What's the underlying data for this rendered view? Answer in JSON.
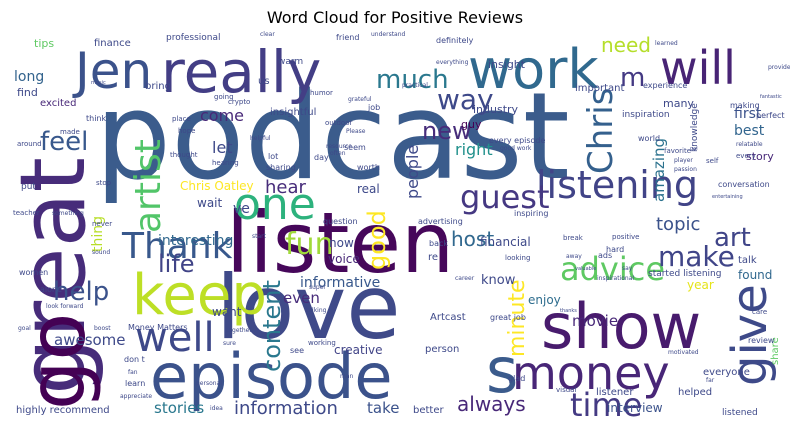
{
  "chart_data": {
    "type": "word_cloud",
    "title": "Word Cloud for Positive Reviews",
    "colormap": "viridis",
    "background": "#ffffff",
    "words": [
      {
        "text": "podcast",
        "weight": 100,
        "color": "#3b5c8c"
      },
      {
        "text": "great",
        "weight": 70,
        "color": "#472c7a",
        "rotate": true
      },
      {
        "text": "listen",
        "weight": 60,
        "color": "#46075a"
      },
      {
        "text": "love",
        "weight": 58,
        "color": "#3f4a89"
      },
      {
        "text": "episode",
        "weight": 48,
        "color": "#3b528b"
      },
      {
        "text": "go",
        "weight": 48,
        "color": "#440154",
        "rotate": true
      },
      {
        "text": "show",
        "weight": 40,
        "color": "#481b6d"
      },
      {
        "text": "s",
        "weight": 40,
        "color": "#3b5b8c"
      },
      {
        "text": "work",
        "weight": 34,
        "color": "#30698e"
      },
      {
        "text": "really",
        "weight": 34,
        "color": "#433e85"
      },
      {
        "text": "Jen",
        "weight": 32,
        "color": "#3b528b"
      },
      {
        "text": "money",
        "weight": 30,
        "color": "#482677"
      },
      {
        "text": "keep",
        "weight": 30,
        "color": "#bddf26"
      },
      {
        "text": "one",
        "weight": 30,
        "color": "#2db27d"
      },
      {
        "text": "give",
        "weight": 28,
        "color": "#3e4a89",
        "rotate": true
      },
      {
        "text": "will",
        "weight": 26,
        "color": "#482475"
      },
      {
        "text": "listening",
        "weight": 26,
        "color": "#414487"
      },
      {
        "text": "Thank",
        "weight": 24,
        "color": "#38588c"
      },
      {
        "text": "artist",
        "weight": 24,
        "color": "#52c569",
        "rotate": true
      },
      {
        "text": "well",
        "weight": 24,
        "color": "#3e4989"
      },
      {
        "text": "guest",
        "weight": 22,
        "color": "#453882"
      },
      {
        "text": "advice",
        "weight": 22,
        "color": "#5ec962"
      },
      {
        "text": "time",
        "weight": 22,
        "color": "#443a83"
      },
      {
        "text": "much",
        "weight": 20,
        "color": "#2a788e"
      },
      {
        "text": "Chris",
        "weight": 20,
        "color": "#34608d",
        "rotate": true
      },
      {
        "text": "make",
        "weight": 20,
        "color": "#404588"
      },
      {
        "text": "fun",
        "weight": 20,
        "color": "#a0da39"
      },
      {
        "text": "feel",
        "weight": 18,
        "color": "#38588c"
      },
      {
        "text": "way",
        "weight": 18,
        "color": "#3e4989"
      },
      {
        "text": "new",
        "weight": 18,
        "color": "#472d7b"
      },
      {
        "text": "help",
        "weight": 18,
        "color": "#3b528b"
      },
      {
        "text": "art",
        "weight": 18,
        "color": "#404588"
      },
      {
        "text": "content",
        "weight": 18,
        "color": "#2a788e",
        "rotate": true
      },
      {
        "text": "good",
        "weight": 18,
        "color": "#fde725",
        "rotate": true
      },
      {
        "text": "m",
        "weight": 18,
        "color": "#443983"
      },
      {
        "text": "minute",
        "weight": 16,
        "color": "#fde725",
        "rotate": true
      },
      {
        "text": "life",
        "weight": 16,
        "color": "#414487"
      },
      {
        "text": "need",
        "weight": 14,
        "color": "#b5de2b"
      },
      {
        "text": "always",
        "weight": 14,
        "color": "#482878"
      },
      {
        "text": "information",
        "weight": 14,
        "color": "#3e4989"
      },
      {
        "text": "host",
        "weight": 14,
        "color": "#31688e"
      },
      {
        "text": "topic",
        "weight": 14,
        "color": "#3b528b"
      },
      {
        "text": "hear",
        "weight": 14,
        "color": "#472c7a"
      },
      {
        "text": "people",
        "weight": 12,
        "color": "#3e4989",
        "rotate": true
      },
      {
        "text": "right",
        "weight": 12,
        "color": "#21918c"
      },
      {
        "text": "amazing",
        "weight": 12,
        "color": "#2c728e",
        "rotate": true
      },
      {
        "text": "come",
        "weight": 12,
        "color": "#482878"
      },
      {
        "text": "stories",
        "weight": 12,
        "color": "#2a788e"
      },
      {
        "text": "awesome",
        "weight": 12,
        "color": "#3e4989"
      },
      {
        "text": "take",
        "weight": 12,
        "color": "#3b528b"
      },
      {
        "text": "movie",
        "weight": 12,
        "color": "#482878"
      },
      {
        "text": "interesting",
        "weight": 11,
        "color": "#31688e"
      },
      {
        "text": "long",
        "weight": 11,
        "color": "#33638d"
      },
      {
        "text": "thing",
        "weight": 11,
        "color": "#b8de29",
        "rotate": true
      },
      {
        "text": "even",
        "weight": 11,
        "color": "#472c7a"
      },
      {
        "text": "informative",
        "weight": 11,
        "color": "#38588c"
      },
      {
        "text": "best",
        "weight": 11,
        "color": "#32658e"
      },
      {
        "text": "first",
        "weight": 11,
        "color": "#3b528b"
      },
      {
        "text": "year",
        "weight": 10,
        "color": "#e5e419"
      },
      {
        "text": "found",
        "weight": 10,
        "color": "#31688e"
      },
      {
        "text": "enjoy",
        "weight": 10,
        "color": "#2e6d8e"
      },
      {
        "text": "know",
        "weight": 10,
        "color": "#3e4989"
      },
      {
        "text": "Chris Oatley",
        "weight": 10,
        "color": "#fde725"
      },
      {
        "text": "financial",
        "weight": 10,
        "color": "#3e4989"
      },
      {
        "text": "wait",
        "weight": 10,
        "color": "#3e4989"
      },
      {
        "text": "ve",
        "weight": 10,
        "color": "#3e4989"
      },
      {
        "text": "now",
        "weight": 9,
        "color": "#3e4989"
      },
      {
        "text": "voice",
        "weight": 9,
        "color": "#482878"
      },
      {
        "text": "want",
        "weight": 9,
        "color": "#3e4989"
      },
      {
        "text": "real",
        "weight": 9,
        "color": "#3e4989"
      },
      {
        "text": "creative",
        "weight": 9,
        "color": "#414487"
      },
      {
        "text": "interview",
        "weight": 9,
        "color": "#3b528b"
      },
      {
        "text": "story",
        "weight": 8,
        "color": "#482878"
      },
      {
        "text": "find",
        "weight": 8,
        "color": "#3e4989"
      },
      {
        "text": "tips",
        "weight": 8,
        "color": "#5ec962"
      },
      {
        "text": "finance",
        "weight": 8,
        "color": "#3e4989"
      },
      {
        "text": "bring",
        "weight": 8,
        "color": "#3e4989"
      },
      {
        "text": "industry",
        "weight": 8,
        "color": "#3e4989"
      },
      {
        "text": "guy",
        "weight": 8,
        "color": "#440154"
      },
      {
        "text": "insight",
        "weight": 8,
        "color": "#3e4989"
      },
      {
        "text": "important",
        "weight": 8,
        "color": "#3e4989"
      },
      {
        "text": "many",
        "weight": 8,
        "color": "#3e4989"
      },
      {
        "text": "let",
        "weight": 8,
        "color": "#3e4989"
      },
      {
        "text": "excited",
        "weight": 8,
        "color": "#482878"
      },
      {
        "text": "us",
        "weight": 8,
        "color": "#3e4989"
      },
      {
        "text": "re",
        "weight": 8,
        "color": "#3e4989"
      },
      {
        "text": "talk",
        "weight": 8,
        "color": "#3e4989"
      },
      {
        "text": "Artcast",
        "weight": 8,
        "color": "#3e4989"
      },
      {
        "text": "person",
        "weight": 8,
        "color": "#3e4989"
      },
      {
        "text": "listener",
        "weight": 8,
        "color": "#3e4989"
      },
      {
        "text": "helped",
        "weight": 8,
        "color": "#3e4989"
      },
      {
        "text": "listened",
        "weight": 7,
        "color": "#3e4989"
      },
      {
        "text": "highly recommend",
        "weight": 8,
        "color": "#3e4989"
      },
      {
        "text": "better",
        "weight": 7,
        "color": "#3e4989"
      },
      {
        "text": "everyone",
        "weight": 7,
        "color": "#3e4989"
      },
      {
        "text": "share",
        "weight": 8,
        "color": "#5ec962",
        "rotate": true
      },
      {
        "text": "started listening",
        "weight": 7,
        "color": "#3e4989"
      },
      {
        "text": "Money Matters",
        "weight": 6,
        "color": "#3e4989"
      },
      {
        "text": "insightful",
        "weight": 7,
        "color": "#3e4989"
      },
      {
        "text": "professional",
        "weight": 7,
        "color": "#3e4989"
      },
      {
        "text": "definitely",
        "weight": 6,
        "color": "#3e4989"
      },
      {
        "text": "friend",
        "weight": 6,
        "color": "#3e4989"
      },
      {
        "text": "warm",
        "weight": 6,
        "color": "#3e4989"
      },
      {
        "text": "inspiration",
        "weight": 6,
        "color": "#3e4989"
      },
      {
        "text": "experience",
        "weight": 6,
        "color": "#3e4989"
      },
      {
        "text": "perfect",
        "weight": 6,
        "color": "#3e4989"
      },
      {
        "text": "making",
        "weight": 6,
        "color": "#3e4989"
      },
      {
        "text": "knowledge",
        "weight": 6,
        "color": "#3e4989",
        "rotate": true
      },
      {
        "text": "review",
        "weight": 6,
        "color": "#3e4989"
      },
      {
        "text": "conversation",
        "weight": 6,
        "color": "#3e4989"
      },
      {
        "text": "alone",
        "weight": 6,
        "color": "#3e4989"
      },
      {
        "text": "women",
        "weight": 6,
        "color": "#3e4989"
      },
      {
        "text": "job",
        "weight": 6,
        "color": "#3e4989"
      },
      {
        "text": "world",
        "weight": 6,
        "color": "#3e4989"
      },
      {
        "text": "lot",
        "weight": 6,
        "color": "#3e4989"
      },
      {
        "text": "sharing",
        "weight": 6,
        "color": "#3e4989"
      },
      {
        "text": "worth",
        "weight": 6,
        "color": "#3e4989"
      },
      {
        "text": "question",
        "weight": 6,
        "color": "#3e4989"
      },
      {
        "text": "advertising",
        "weight": 6,
        "color": "#3e4989"
      },
      {
        "text": "every episode",
        "weight": 6,
        "color": "#3e4989"
      },
      {
        "text": "good work",
        "weight": 5,
        "color": "#3e4989"
      },
      {
        "text": "great job",
        "weight": 6,
        "color": "#3e4989"
      },
      {
        "text": "back",
        "weight": 6,
        "color": "#3e4989"
      },
      {
        "text": "inspiring",
        "weight": 6,
        "color": "#3e4989"
      },
      {
        "text": "hard",
        "weight": 6,
        "color": "#3e4989"
      },
      {
        "text": "positive",
        "weight": 5,
        "color": "#3e4989"
      },
      {
        "text": "ads",
        "weight": 6,
        "color": "#3e4989"
      },
      {
        "text": "glad",
        "weight": 6,
        "color": "#3e4989"
      },
      {
        "text": "visual",
        "weight": 5,
        "color": "#3e4989"
      },
      {
        "text": "thought",
        "weight": 5,
        "color": "#3e4989"
      },
      {
        "text": "hope",
        "weight": 5,
        "color": "#3e4989"
      },
      {
        "text": "place",
        "weight": 5,
        "color": "#3e4989"
      },
      {
        "text": "think",
        "weight": 6,
        "color": "#3e4989"
      },
      {
        "text": "made",
        "weight": 5,
        "color": "#3e4989"
      },
      {
        "text": "crypto",
        "weight": 5,
        "color": "#3e4989"
      },
      {
        "text": "day",
        "weight": 6,
        "color": "#3e4989"
      },
      {
        "text": "seem",
        "weight": 6,
        "color": "#3e4989"
      },
      {
        "text": "see",
        "weight": 6,
        "color": "#3e4989"
      },
      {
        "text": "working",
        "weight": 5,
        "color": "#3e4989"
      },
      {
        "text": "learn",
        "weight": 6,
        "color": "#3e4989"
      },
      {
        "text": "don t",
        "weight": 6,
        "color": "#3e4989"
      },
      {
        "text": "put",
        "weight": 6,
        "color": "#3e4989"
      },
      {
        "text": "stop",
        "weight": 5,
        "color": "#3e4989"
      },
      {
        "text": "teacher",
        "weight": 5,
        "color": "#3e4989"
      },
      {
        "text": "around",
        "weight": 5,
        "color": "#3e4989"
      },
      {
        "text": "sound",
        "weight": 5,
        "color": "#3e4989"
      },
      {
        "text": "humor",
        "weight": 5,
        "color": "#3e4989"
      },
      {
        "text": "understand",
        "weight": 5,
        "color": "#3e4989"
      },
      {
        "text": "clear",
        "weight": 5,
        "color": "#3e4989"
      },
      {
        "text": "going",
        "weight": 5,
        "color": "#3e4989"
      },
      {
        "text": "music",
        "weight": 5,
        "color": "#3e4989"
      },
      {
        "text": "practical",
        "weight": 5,
        "color": "#3e4989"
      },
      {
        "text": "everything",
        "weight": 5,
        "color": "#3e4989"
      },
      {
        "text": "grateful",
        "weight": 5,
        "color": "#3e4989"
      },
      {
        "text": "learned",
        "weight": 5,
        "color": "#3e4989"
      },
      {
        "text": "provide",
        "weight": 5,
        "color": "#3e4989"
      },
      {
        "text": "outdoor",
        "weight": 5,
        "color": "#3e4989"
      },
      {
        "text": "Please",
        "weight": 5,
        "color": "#3e4989"
      },
      {
        "text": "resource",
        "weight": 5,
        "color": "#3e4989"
      },
      {
        "text": "often",
        "weight": 5,
        "color": "#3e4989"
      },
      {
        "text": "helpful",
        "weight": 5,
        "color": "#3e4989"
      },
      {
        "text": "hearing",
        "weight": 5,
        "color": "#3e4989"
      },
      {
        "text": "never",
        "weight": 5,
        "color": "#3e4989"
      },
      {
        "text": "something",
        "weight": 5,
        "color": "#3e4989"
      },
      {
        "text": "start",
        "weight": 5,
        "color": "#3e4989"
      },
      {
        "text": "break",
        "weight": 5,
        "color": "#3e4989"
      },
      {
        "text": "away",
        "weight": 5,
        "color": "#3e4989"
      },
      {
        "text": "looking",
        "weight": 5,
        "color": "#3e4989"
      },
      {
        "text": "career",
        "weight": 5,
        "color": "#3e4989"
      },
      {
        "text": "super",
        "weight": 5,
        "color": "#3e4989"
      },
      {
        "text": "talking",
        "weight": 5,
        "color": "#3e4989"
      },
      {
        "text": "look forward",
        "weight": 5,
        "color": "#3e4989"
      },
      {
        "text": "goal",
        "weight": 5,
        "color": "#3e4989"
      },
      {
        "text": "together",
        "weight": 5,
        "color": "#3e4989"
      },
      {
        "text": "sure",
        "weight": 5,
        "color": "#3e4989"
      },
      {
        "text": "fan",
        "weight": 5,
        "color": "#3e4989"
      },
      {
        "text": "boost",
        "weight": 5,
        "color": "#3e4989"
      },
      {
        "text": "appreciate",
        "weight": 5,
        "color": "#3e4989"
      },
      {
        "text": "personal",
        "weight": 5,
        "color": "#3e4989"
      },
      {
        "text": "man",
        "weight": 5,
        "color": "#3e4989"
      },
      {
        "text": "idea",
        "weight": 5,
        "color": "#3e4989"
      },
      {
        "text": "motivated",
        "weight": 5,
        "color": "#3e4989"
      },
      {
        "text": "passion",
        "weight": 5,
        "color": "#3e4989"
      },
      {
        "text": "favorite",
        "weight": 5,
        "color": "#3e4989"
      },
      {
        "text": "player",
        "weight": 5,
        "color": "#3e4989"
      },
      {
        "text": "self",
        "weight": 5,
        "color": "#3e4989"
      },
      {
        "text": "every",
        "weight": 5,
        "color": "#3e4989"
      },
      {
        "text": "relatable",
        "weight": 5,
        "color": "#3e4989"
      },
      {
        "text": "care",
        "weight": 5,
        "color": "#3e4989"
      },
      {
        "text": "far",
        "weight": 5,
        "color": "#3e4989"
      },
      {
        "text": "inspirational",
        "weight": 5,
        "color": "#3e4989"
      },
      {
        "text": "say",
        "weight": 5,
        "color": "#3e4989"
      },
      {
        "text": "gal",
        "weight": 5,
        "color": "#3e4989"
      },
      {
        "text": "entertaining",
        "weight": 5,
        "color": "#3e4989"
      },
      {
        "text": "valuable",
        "weight": 5,
        "color": "#3e4989"
      },
      {
        "text": "thanks",
        "weight": 5,
        "color": "#3e4989"
      },
      {
        "text": "fantastic",
        "weight": 5,
        "color": "#3e4989"
      }
    ]
  }
}
